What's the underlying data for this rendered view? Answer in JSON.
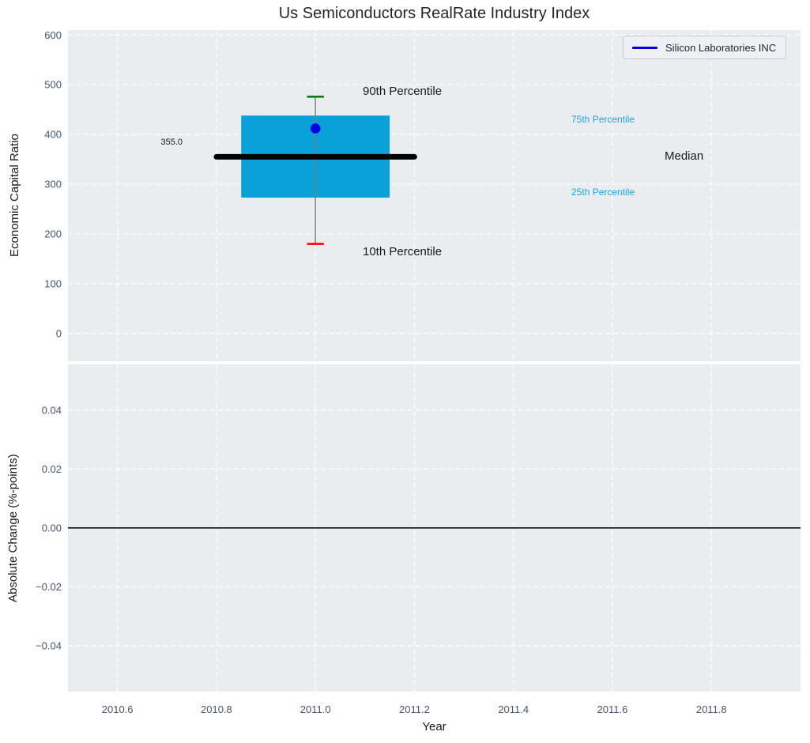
{
  "figure": {
    "title": "Us Semiconductors RealRate Industry Index"
  },
  "colors": {
    "plot_bg": "#e9edef",
    "grid": "#ffffff",
    "tick_label": "#44546b",
    "text": "#1a1a1a",
    "box_fill": "#0aa0d8",
    "median_line": "#000000",
    "whisker": "#7f7f7f",
    "p90_cap": "#008000",
    "p10_cap": "#ff0000",
    "company_marker": "#0000e0",
    "legend_line": "#0000e0",
    "percentile_label": "#1da3da",
    "zero_line": "#000000"
  },
  "chart_data": [
    {
      "type": "boxplot",
      "title": "Us Semiconductors RealRate Industry Index",
      "xlabel": "",
      "ylabel": "Economic Capital Ratio",
      "xlim": [
        2010.5,
        2011.98
      ],
      "ylim": [
        -56,
        610
      ],
      "xticks": [
        2010.6,
        2010.8,
        2011.0,
        2011.2,
        2011.4,
        2011.6,
        2011.8
      ],
      "xtick_labels": [
        "2010.6",
        "2010.8",
        "2011.0",
        "2011.2",
        "2011.4",
        "2011.6",
        "2011.8"
      ],
      "yticks": [
        0,
        100,
        200,
        300,
        400,
        500,
        600
      ],
      "ytick_labels": [
        "0",
        "100",
        "200",
        "300",
        "400",
        "500",
        "600"
      ],
      "grid": true,
      "legend": {
        "label": "Silicon Laboratories INC",
        "position": "upper right"
      },
      "box": {
        "x_center": 2011.0,
        "median": 355.0,
        "q1": 273,
        "q3": 438,
        "p10": 180,
        "p90": 476,
        "company_value": 412,
        "box_x_range": [
          2010.85,
          2011.15
        ],
        "median_x_range": [
          2010.8,
          2011.2
        ],
        "cap_half_width": 0.017
      },
      "annotations": [
        {
          "text": "90th Percentile"
        },
        {
          "text": "10th Percentile"
        },
        {
          "text": "355.0"
        },
        {
          "text": "75th Percentile"
        },
        {
          "text": "25th Percentile"
        },
        {
          "text": "Median"
        }
      ]
    },
    {
      "type": "line",
      "xlabel": "Year",
      "ylabel": "Absolute Change (%-points)",
      "xlim": [
        2010.5,
        2011.98
      ],
      "ylim": [
        -0.0556,
        0.0555
      ],
      "xticks": [
        2010.6,
        2010.8,
        2011.0,
        2011.2,
        2011.4,
        2011.6,
        2011.8
      ],
      "xtick_labels": [
        "2010.6",
        "2010.8",
        "2011.0",
        "2011.2",
        "2011.4",
        "2011.6",
        "2011.8"
      ],
      "yticks": [
        0.04,
        0.02,
        0,
        -0.02,
        -0.04
      ],
      "ytick_labels": [
        "0.04",
        "0.02",
        "0.00",
        "−0.02",
        "−0.04"
      ],
      "grid": true,
      "zero_line": 0.0
    }
  ]
}
